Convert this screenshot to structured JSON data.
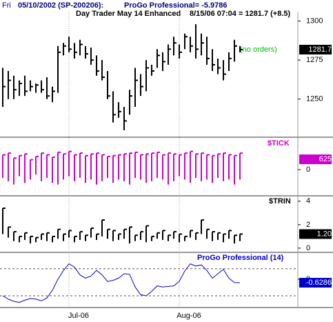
{
  "header": {
    "day": "Fri",
    "symbol": "05/10/2002 (SP-200206):",
    "indicator": "ProGo Professional= -5.9786"
  },
  "chart_data": [
    {
      "type": "ohlc",
      "title": "Day Trader May 14 Enhanced",
      "subtitle": "8/15/06 07:04 = 1281.7 (+8.5)",
      "annotation": "(no orders)",
      "color": "#000000",
      "categories": [
        null,
        null,
        null,
        null,
        null,
        null,
        null,
        null,
        null,
        null,
        null,
        null,
        "Jul-06",
        null,
        null,
        null,
        null,
        null,
        null,
        null,
        null,
        null,
        null,
        null,
        null,
        null,
        null,
        null,
        null,
        null,
        null,
        null,
        "Aug-06",
        null,
        null,
        null,
        null,
        null,
        null,
        null,
        null,
        null,
        null,
        null
      ],
      "high": [
        1270,
        1268,
        1265,
        1262,
        1265,
        1262,
        1260,
        1262,
        1264,
        1258,
        1284,
        1286,
        1290,
        1286,
        1288,
        1284,
        1283,
        1278,
        1275,
        1268,
        1255,
        1248,
        1245,
        1256,
        1270,
        1266,
        1275,
        1272,
        1282,
        1280,
        1285,
        1290,
        1285,
        1292,
        1290,
        1298,
        1292,
        1290,
        1282,
        1276,
        1275,
        1280,
        1288,
        1284
      ],
      "low": [
        1245,
        1250,
        1250,
        1252,
        1252,
        1255,
        1254,
        1254,
        1250,
        1248,
        1254,
        1278,
        1280,
        1276,
        1278,
        1276,
        1272,
        1265,
        1262,
        1250,
        1235,
        1238,
        1230,
        1240,
        1245,
        1252,
        1255,
        1265,
        1270,
        1268,
        1272,
        1278,
        1276,
        1282,
        1280,
        1276,
        1278,
        1272,
        1268,
        1266,
        1262,
        1268,
        1274,
        1280
      ],
      "close": [
        1258,
        1262,
        1256,
        1260,
        1255,
        1258,
        1259,
        1256,
        1252,
        1255,
        1280,
        1284,
        1282,
        1280,
        1285,
        1279,
        1275,
        1268,
        1264,
        1252,
        1240,
        1242,
        1236,
        1252,
        1262,
        1258,
        1270,
        1268,
        1278,
        1274,
        1282,
        1286,
        1280,
        1290,
        1284,
        1282,
        1286,
        1276,
        1272,
        1270,
        1266,
        1276,
        1284,
        1281.7
      ],
      "ylim": [
        1226,
        1306
      ],
      "yticks": [
        1250,
        1275,
        1300
      ],
      "last_value": 1281.7
    },
    {
      "type": "range",
      "title": "$TICK",
      "color": "#cc00cc",
      "high": [
        900,
        1000,
        700,
        850,
        950,
        600,
        800,
        1000,
        900,
        750,
        1050,
        950,
        1100,
        900,
        1000,
        850,
        950,
        1000,
        900,
        800,
        850,
        900,
        950,
        1000,
        1050,
        900,
        950,
        1000,
        1050,
        900,
        1000,
        950,
        900,
        1000,
        1100,
        950,
        1000,
        900,
        850,
        950,
        1000,
        900,
        850,
        1000
      ],
      "low": [
        -500,
        -700,
        -900,
        -400,
        -800,
        -600,
        -300,
        -700,
        -500,
        -800,
        -900,
        -600,
        -400,
        -700,
        -500,
        -800,
        -600,
        -900,
        -700,
        -500,
        -800,
        -600,
        -700,
        -900,
        -500,
        -600,
        -800,
        -700,
        -500,
        -600,
        -900,
        -700,
        -400,
        -600,
        -800,
        -500,
        -700,
        -600,
        -800,
        -500,
        -700,
        -600,
        -900,
        -600
      ],
      "ylim": [
        -1540,
        1920
      ],
      "yticks": [
        0
      ],
      "last_value": 625
    },
    {
      "type": "range",
      "title": "$TRIN",
      "color": "#000000",
      "high": [
        3.4,
        1.8,
        1.4,
        1.0,
        1.3,
        1.0,
        0.9,
        1.2,
        1.3,
        1.0,
        1.6,
        1.2,
        1.5,
        1.0,
        1.4,
        1.1,
        1.7,
        1.2,
        2.4,
        1.6,
        1.5,
        1.2,
        1.6,
        1.8,
        1.1,
        1.4,
        1.9,
        1.0,
        1.3,
        1.5,
        1.1,
        1.4,
        1.2,
        1.0,
        1.5,
        1.3,
        2.4,
        1.6,
        1.4,
        1.3,
        1.2,
        1.5,
        1.1,
        1.2
      ],
      "low": [
        1.2,
        0.9,
        0.6,
        0.5,
        0.7,
        0.4,
        0.5,
        0.7,
        0.6,
        0.5,
        0.8,
        0.6,
        0.9,
        0.5,
        0.7,
        0.6,
        0.9,
        0.7,
        1.0,
        0.8,
        0.6,
        0.7,
        0.8,
        0.4,
        0.6,
        0.7,
        0.5,
        0.6,
        0.8,
        0.7,
        0.6,
        0.8,
        0.5,
        0.6,
        0.9,
        0.7,
        1.2,
        0.8,
        0.6,
        0.7,
        0.5,
        0.8,
        0.4,
        0.6
      ],
      "ylim": [
        -0.3,
        4.4
      ],
      "yticks": [
        0,
        2,
        4
      ],
      "last_value": {
        "value": 1.2,
        "label": "1.20"
      }
    },
    {
      "type": "line",
      "title": "ProGo Professional (14)",
      "color": "#0000cc",
      "values": [
        -3,
        -3.6,
        -4,
        -4.2,
        -3.8,
        -3.5,
        -3.6,
        -3.9,
        -3.4,
        -2,
        0,
        1.6,
        2.8,
        2.2,
        0.8,
        0.2,
        0.6,
        1.6,
        0.8,
        -0.4,
        -0.2,
        0.2,
        1,
        0.9,
        -1.4,
        -2.8,
        -3,
        -2.2,
        -1.2,
        -1.4,
        -1.3,
        -1.2,
        -0.4,
        1.5,
        2.8,
        2.4,
        2.6,
        1.6,
        0.2,
        1,
        1.8,
        0.2,
        -0.6,
        -0.6286
      ],
      "levels": [
        1.9,
        -3
      ],
      "ylim": [
        -5,
        4.75
      ],
      "yticks": [
        0
      ],
      "last_value": -0.6286
    }
  ]
}
